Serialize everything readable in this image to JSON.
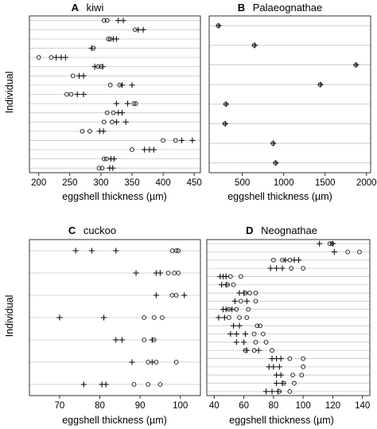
{
  "chart_data": [
    {
      "panel": "A",
      "title": "kiwi",
      "type": "scatter",
      "xlabel": "eggshell thickness (µm)",
      "ylabel": "Individual",
      "xlim": [
        185,
        460
      ],
      "xticks": [
        200,
        250,
        300,
        350,
        400,
        450
      ],
      "grid": "horizontal",
      "rows": [
        {
          "circles": [
            305,
            310
          ],
          "plus": [
            328,
            336
          ]
        },
        {
          "circles": [
            355
          ],
          "plus": [
            360,
            368
          ]
        },
        {
          "circles": [
            312,
            315
          ],
          "plus": [
            320,
            325
          ]
        },
        {
          "circles": [
            288
          ],
          "plus": [
            285
          ]
        },
        {
          "circles": [
            200,
            220
          ],
          "plus": [
            228,
            236,
            243
          ]
        },
        {
          "circles": [
            295,
            300
          ],
          "plus": [
            290,
            303
          ]
        },
        {
          "circles": [
            255
          ],
          "plus": [
            265,
            272
          ]
        },
        {
          "circles": [
            315,
            330
          ],
          "plus": [
            334,
            350
          ]
        },
        {
          "circles": [
            245,
            252
          ],
          "plus": [
            262,
            272
          ]
        },
        {
          "circles": [
            353,
            356
          ],
          "plus": [
            325,
            343
          ]
        },
        {
          "circles": [
            310,
            320
          ],
          "plus": [
            328,
            334
          ]
        },
        {
          "circles": [
            305,
            318
          ],
          "plus": [
            325,
            340
          ]
        },
        {
          "circles": [
            270,
            282
          ],
          "plus": [
            298,
            304
          ]
        },
        {
          "circles": [
            400,
            420
          ],
          "plus": [
            430,
            447
          ]
        },
        {
          "circles": [
            350
          ],
          "plus": [
            370,
            378,
            385
          ]
        },
        {
          "circles": [
            305,
            309
          ],
          "plus": [
            316,
            321
          ]
        },
        {
          "circles": [
            297,
            302
          ],
          "plus": [
            314,
            319
          ]
        }
      ]
    },
    {
      "panel": "B",
      "title": "Palaeognathae",
      "type": "scatter",
      "xlabel": "eggshell thickness (µm)",
      "ylabel": "",
      "xlim": [
        100,
        2050
      ],
      "xticks": [
        500,
        1000,
        1500,
        2000
      ],
      "grid": "horizontal",
      "rows": [
        {
          "circles": [
            210
          ],
          "plus": [
            215
          ]
        },
        {
          "circles": [
            645
          ],
          "plus": [
            650
          ]
        },
        {
          "circles": [
            1870
          ],
          "plus": [
            1875
          ]
        },
        {
          "circles": [
            1440
          ],
          "plus": [
            1445
          ]
        },
        {
          "circles": [
            300
          ],
          "plus": [
            305
          ]
        },
        {
          "circles": [
            290
          ],
          "plus": [
            295
          ]
        },
        {
          "circles": [
            870
          ],
          "plus": [
            875
          ]
        },
        {
          "circles": [
            900
          ],
          "plus": [
            905
          ]
        }
      ]
    },
    {
      "panel": "C",
      "title": "cuckoo",
      "type": "scatter",
      "xlabel": "eggshell thickness (µm)",
      "ylabel": "Individual",
      "xlim": [
        62.5,
        105
      ],
      "xticks": [
        70,
        80,
        90,
        100
      ],
      "grid": "horizontal",
      "rows": [
        {
          "circles": [
            98,
            99,
            99.5
          ],
          "plus": [
            74,
            78,
            84
          ]
        },
        {
          "circles": [
            97,
            98.5,
            99.5
          ],
          "plus": [
            89,
            94,
            95
          ]
        },
        {
          "circles": [
            98,
            99
          ],
          "plus": [
            94,
            101
          ]
        },
        {
          "circles": [
            91,
            93.5,
            95.5
          ],
          "plus": [
            70,
            81
          ]
        },
        {
          "circles": [
            91,
            93.5
          ],
          "plus": [
            84,
            85.5,
            93
          ]
        },
        {
          "circles": [
            92,
            94,
            99
          ],
          "plus": [
            88,
            93
          ]
        },
        {
          "circles": [
            88.5,
            92,
            95
          ],
          "plus": [
            76,
            80.5,
            81.5
          ]
        }
      ]
    },
    {
      "panel": "D",
      "title": "Neognathae",
      "type": "scatter",
      "xlabel": "eggshell thickness (µm)",
      "ylabel": "",
      "xlim": [
        35,
        145
      ],
      "xticks": [
        40,
        60,
        80,
        100,
        120,
        140
      ],
      "grid": "horizontal",
      "rows": [
        {
          "circles": [
            118,
            119.5
          ],
          "plus": [
            111,
            120
          ]
        },
        {
          "circles": [
            130,
            138
          ],
          "plus": [
            121
          ]
        },
        {
          "circles": [
            80,
            86,
            91
          ],
          "plus": [
            88,
            94,
            97
          ]
        },
        {
          "circles": [
            92,
            100
          ],
          "plus": [
            78,
            82,
            86
          ]
        },
        {
          "circles": [
            51,
            58
          ],
          "plus": [
            44,
            46,
            48
          ]
        },
        {
          "circles": [
            49,
            53
          ],
          "plus": [
            45,
            48
          ]
        },
        {
          "circles": [
            61,
            64,
            68
          ],
          "plus": [
            57,
            60
          ]
        },
        {
          "circles": [
            58,
            68
          ],
          "plus": [
            54,
            62
          ]
        },
        {
          "circles": [
            50,
            55,
            63
          ],
          "plus": [
            46,
            48,
            52
          ]
        },
        {
          "circles": [
            50,
            57,
            62
          ],
          "plus": [
            43,
            47
          ]
        },
        {
          "circles": [
            69,
            71
          ],
          "plus": [
            53,
            57
          ]
        },
        {
          "circles": [
            67,
            73
          ],
          "plus": [
            51,
            55,
            61
          ]
        },
        {
          "circles": [
            68,
            75
          ],
          "plus": [
            55,
            60
          ]
        },
        {
          "circles": [
            61,
            67,
            79
          ],
          "plus": [
            62,
            70
          ]
        },
        {
          "circles": [
            91,
            100
          ],
          "plus": [
            79,
            82,
            85
          ]
        },
        {
          "circles": [
            100
          ],
          "plus": [
            77,
            80,
            84
          ]
        },
        {
          "circles": [
            93,
            99
          ],
          "plus": [
            82,
            85
          ]
        },
        {
          "circles": [
            87,
            94
          ],
          "plus": [
            82,
            86
          ]
        },
        {
          "circles": [
            84,
            91
          ],
          "plus": [
            75,
            79,
            83
          ]
        }
      ]
    }
  ]
}
